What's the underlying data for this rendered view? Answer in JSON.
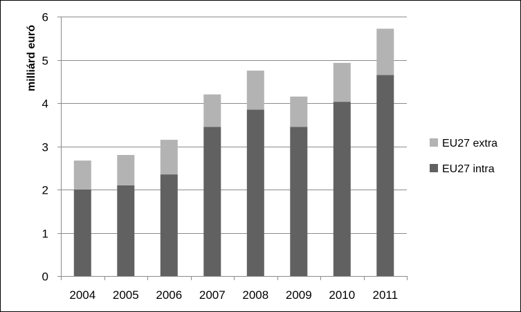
{
  "chart_data": {
    "type": "bar",
    "stacked": true,
    "categories": [
      "2004",
      "2005",
      "2006",
      "2007",
      "2008",
      "2009",
      "2010",
      "2011"
    ],
    "series": [
      {
        "name": "EU27 intra",
        "color": "#616161",
        "values": [
          2.0,
          2.1,
          2.35,
          3.45,
          3.85,
          3.45,
          4.03,
          4.65
        ]
      },
      {
        "name": "EU27 extra",
        "color": "#b3b3b3",
        "values": [
          0.67,
          0.7,
          0.8,
          0.75,
          0.9,
          0.7,
          0.9,
          1.07
        ]
      }
    ],
    "xlabel": "",
    "ylabel": "milliárd euró",
    "ylim": [
      0,
      6
    ],
    "yticks": [
      "0",
      "1",
      "2",
      "3",
      "4",
      "5",
      "6"
    ],
    "grid": true,
    "legend": {
      "position": "right",
      "order": [
        "EU27 extra",
        "EU27 intra"
      ]
    }
  }
}
